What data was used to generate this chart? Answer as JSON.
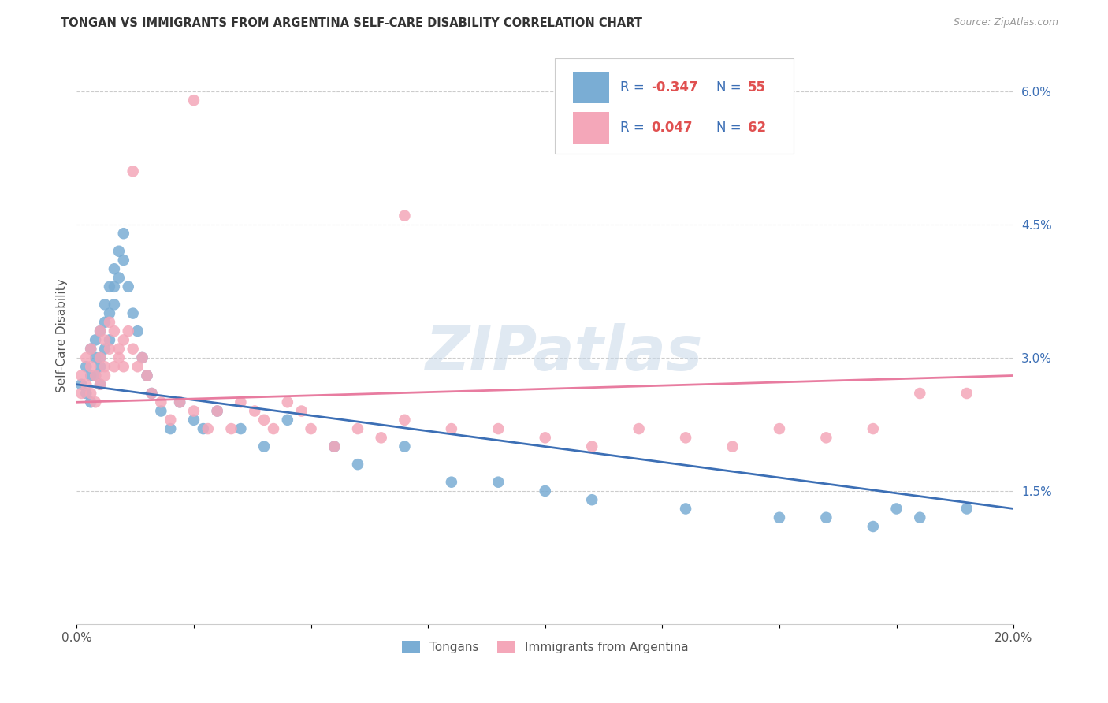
{
  "title": "TONGAN VS IMMIGRANTS FROM ARGENTINA SELF-CARE DISABILITY CORRELATION CHART",
  "source": "Source: ZipAtlas.com",
  "ylabel": "Self-Care Disability",
  "right_yticks": [
    "1.5%",
    "3.0%",
    "4.5%",
    "6.0%"
  ],
  "right_ytick_vals": [
    0.015,
    0.03,
    0.045,
    0.06
  ],
  "xlim": [
    0.0,
    0.2
  ],
  "ylim": [
    0.0,
    0.065
  ],
  "tongans_R": -0.347,
  "tongans_N": 55,
  "argentina_R": 0.047,
  "argentina_N": 62,
  "legend_labels": [
    "Tongans",
    "Immigrants from Argentina"
  ],
  "blue_color": "#7aadd4",
  "pink_color": "#f4a7b9",
  "blue_line_color": "#3c6fb5",
  "pink_line_color": "#e87ca0",
  "legend_text_color": "#3c6fb5",
  "watermark": "ZIPatlas",
  "tongans_x": [
    0.001,
    0.002,
    0.002,
    0.003,
    0.003,
    0.003,
    0.004,
    0.004,
    0.004,
    0.005,
    0.005,
    0.005,
    0.005,
    0.006,
    0.006,
    0.006,
    0.007,
    0.007,
    0.007,
    0.008,
    0.008,
    0.008,
    0.009,
    0.009,
    0.01,
    0.01,
    0.011,
    0.012,
    0.013,
    0.014,
    0.015,
    0.016,
    0.018,
    0.02,
    0.022,
    0.025,
    0.027,
    0.03,
    0.035,
    0.04,
    0.045,
    0.055,
    0.06,
    0.07,
    0.08,
    0.09,
    0.1,
    0.11,
    0.13,
    0.15,
    0.16,
    0.17,
    0.175,
    0.18,
    0.19
  ],
  "tongans_y": [
    0.027,
    0.029,
    0.026,
    0.028,
    0.031,
    0.025,
    0.032,
    0.03,
    0.028,
    0.033,
    0.03,
    0.027,
    0.029,
    0.036,
    0.034,
    0.031,
    0.038,
    0.035,
    0.032,
    0.04,
    0.038,
    0.036,
    0.042,
    0.039,
    0.044,
    0.041,
    0.038,
    0.035,
    0.033,
    0.03,
    0.028,
    0.026,
    0.024,
    0.022,
    0.025,
    0.023,
    0.022,
    0.024,
    0.022,
    0.02,
    0.023,
    0.02,
    0.018,
    0.02,
    0.016,
    0.016,
    0.015,
    0.014,
    0.013,
    0.012,
    0.012,
    0.011,
    0.013,
    0.012,
    0.013
  ],
  "argentina_x": [
    0.001,
    0.001,
    0.002,
    0.002,
    0.003,
    0.003,
    0.003,
    0.004,
    0.004,
    0.005,
    0.005,
    0.005,
    0.006,
    0.006,
    0.006,
    0.007,
    0.007,
    0.008,
    0.008,
    0.009,
    0.009,
    0.01,
    0.01,
    0.011,
    0.012,
    0.013,
    0.014,
    0.015,
    0.016,
    0.018,
    0.02,
    0.022,
    0.025,
    0.028,
    0.03,
    0.033,
    0.035,
    0.038,
    0.04,
    0.042,
    0.045,
    0.048,
    0.05,
    0.055,
    0.06,
    0.065,
    0.07,
    0.08,
    0.09,
    0.1,
    0.11,
    0.12,
    0.13,
    0.14,
    0.15,
    0.16,
    0.17,
    0.18,
    0.19,
    0.025,
    0.012,
    0.07
  ],
  "argentina_y": [
    0.028,
    0.026,
    0.03,
    0.027,
    0.029,
    0.026,
    0.031,
    0.028,
    0.025,
    0.03,
    0.027,
    0.033,
    0.029,
    0.032,
    0.028,
    0.031,
    0.034,
    0.029,
    0.033,
    0.031,
    0.03,
    0.029,
    0.032,
    0.033,
    0.031,
    0.029,
    0.03,
    0.028,
    0.026,
    0.025,
    0.023,
    0.025,
    0.024,
    0.022,
    0.024,
    0.022,
    0.025,
    0.024,
    0.023,
    0.022,
    0.025,
    0.024,
    0.022,
    0.02,
    0.022,
    0.021,
    0.023,
    0.022,
    0.022,
    0.021,
    0.02,
    0.022,
    0.021,
    0.02,
    0.022,
    0.021,
    0.022,
    0.026,
    0.026,
    0.059,
    0.051,
    0.046
  ]
}
